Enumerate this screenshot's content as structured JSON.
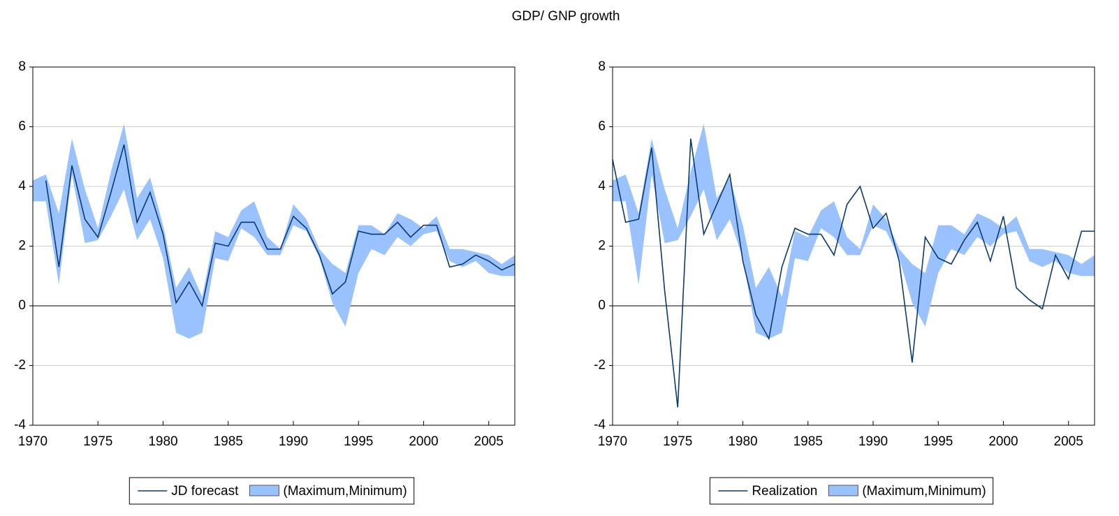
{
  "title": "GDP/ GNP growth",
  "chart_data": [
    {
      "type": "line",
      "x": [
        1970,
        1971,
        1972,
        1973,
        1974,
        1975,
        1976,
        1977,
        1978,
        1979,
        1980,
        1981,
        1982,
        1983,
        1984,
        1985,
        1986,
        1987,
        1988,
        1989,
        1990,
        1991,
        1992,
        1993,
        1994,
        1995,
        1996,
        1997,
        1998,
        1999,
        2000,
        2001,
        2002,
        2003,
        2004,
        2005,
        2006,
        2007
      ],
      "xlim": [
        1970,
        2007
      ],
      "xticks": [
        1970,
        1975,
        1980,
        1985,
        1990,
        1995,
        2000,
        2005
      ],
      "ylim": [
        -4,
        8
      ],
      "yticks": [
        -4,
        -2,
        0,
        2,
        4,
        6,
        8
      ],
      "grid": true,
      "legend": "bottom",
      "series": [
        {
          "name": "JD forecast",
          "color": "#0b3a6b",
          "values": [
            null,
            4.2,
            1.3,
            4.7,
            2.9,
            2.3,
            3.8,
            5.4,
            2.8,
            3.8,
            2.4,
            0.1,
            0.8,
            0.0,
            2.1,
            2.0,
            2.8,
            2.8,
            1.9,
            1.9,
            3.0,
            2.6,
            1.7,
            0.4,
            0.8,
            2.5,
            2.4,
            2.4,
            2.8,
            2.3,
            2.7,
            2.7,
            1.3,
            1.4,
            1.7,
            1.5,
            1.2,
            1.4
          ]
        },
        {
          "name": "(Maximum,Minimum)",
          "type": "band",
          "color": "#99c2ff",
          "max": [
            4.2,
            4.4,
            3.1,
            5.6,
            3.9,
            2.6,
            4.5,
            6.1,
            3.6,
            4.3,
            2.7,
            0.6,
            1.3,
            0.3,
            2.5,
            2.3,
            3.2,
            3.5,
            2.3,
            1.9,
            3.4,
            2.9,
            1.9,
            1.4,
            1.1,
            2.7,
            2.7,
            2.4,
            3.1,
            2.9,
            2.6,
            3.0,
            1.9,
            1.9,
            1.8,
            1.7,
            1.4,
            1.7
          ],
          "min": [
            3.5,
            3.5,
            0.7,
            4.4,
            2.1,
            2.2,
            3.0,
            3.9,
            2.2,
            2.9,
            1.6,
            -0.9,
            -1.1,
            -0.9,
            1.6,
            1.5,
            2.6,
            2.3,
            1.7,
            1.7,
            2.7,
            2.5,
            1.6,
            0.1,
            -0.7,
            1.1,
            1.9,
            1.7,
            2.3,
            2.0,
            2.4,
            2.5,
            1.5,
            1.3,
            1.5,
            1.1,
            1.0,
            1.0
          ]
        }
      ]
    },
    {
      "type": "line",
      "x": [
        1970,
        1971,
        1972,
        1973,
        1974,
        1975,
        1976,
        1977,
        1978,
        1979,
        1980,
        1981,
        1982,
        1983,
        1984,
        1985,
        1986,
        1987,
        1988,
        1989,
        1990,
        1991,
        1992,
        1993,
        1994,
        1995,
        1996,
        1997,
        1998,
        1999,
        2000,
        2001,
        2002,
        2003,
        2004,
        2005,
        2006,
        2007
      ],
      "xlim": [
        1970,
        2007
      ],
      "xticks": [
        1970,
        1975,
        1980,
        1985,
        1990,
        1995,
        2000,
        2005
      ],
      "ylim": [
        -4,
        8
      ],
      "yticks": [
        -4,
        -2,
        0,
        2,
        4,
        6,
        8
      ],
      "grid": true,
      "legend": "bottom",
      "series": [
        {
          "name": "Realization",
          "color": "#0b3a6b",
          "values": [
            4.9,
            2.8,
            2.9,
            5.3,
            0.5,
            -3.4,
            5.6,
            2.4,
            3.4,
            4.4,
            1.5,
            -0.3,
            -1.1,
            1.3,
            2.6,
            2.4,
            2.4,
            1.7,
            3.4,
            4.0,
            2.6,
            3.1,
            1.5,
            -1.9,
            2.3,
            1.6,
            1.4,
            2.2,
            2.8,
            1.5,
            3.0,
            0.6,
            0.2,
            -0.1,
            1.7,
            0.9,
            2.5,
            2.5
          ]
        },
        {
          "name": "(Maximum,Minimum)",
          "type": "band",
          "color": "#99c2ff",
          "max": [
            4.2,
            4.4,
            3.1,
            5.6,
            3.9,
            2.6,
            4.5,
            6.1,
            3.6,
            4.3,
            2.7,
            0.6,
            1.3,
            0.3,
            2.5,
            2.3,
            3.2,
            3.5,
            2.3,
            1.9,
            3.4,
            2.9,
            1.9,
            1.4,
            1.1,
            2.7,
            2.7,
            2.4,
            3.1,
            2.9,
            2.6,
            3.0,
            1.9,
            1.9,
            1.8,
            1.7,
            1.4,
            1.7
          ],
          "min": [
            3.5,
            3.5,
            0.7,
            4.4,
            2.1,
            2.2,
            3.0,
            3.9,
            2.2,
            2.9,
            1.6,
            -0.9,
            -1.1,
            -0.9,
            1.6,
            1.5,
            2.6,
            2.3,
            1.7,
            1.7,
            2.7,
            2.5,
            1.6,
            0.1,
            -0.7,
            1.1,
            1.9,
            1.7,
            2.3,
            2.0,
            2.4,
            2.5,
            1.5,
            1.3,
            1.5,
            1.1,
            1.0,
            1.0
          ]
        }
      ]
    }
  ]
}
